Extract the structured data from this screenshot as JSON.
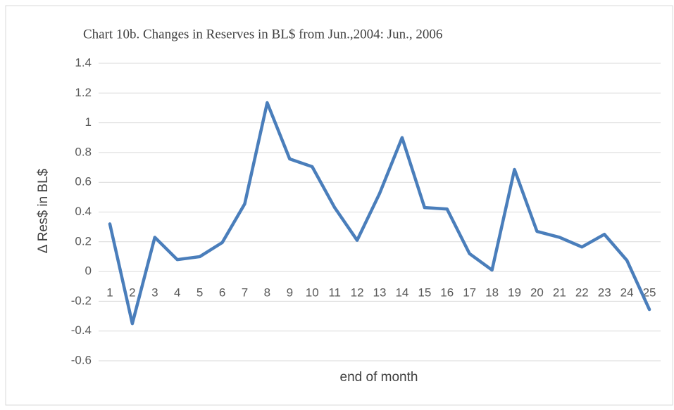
{
  "chart_data": {
    "type": "line",
    "title": "Chart 10b. Changes in Reserves in BL$ from Jun.,2004: Jun., 2006",
    "x_label": "end of month",
    "y_label": "Δ Res$ in BL$",
    "categories": [
      "1",
      "2",
      "3",
      "4",
      "5",
      "6",
      "7",
      "8",
      "9",
      "10",
      "11",
      "12",
      "13",
      "14",
      "15",
      "16",
      "17",
      "18",
      "19",
      "20",
      "21",
      "22",
      "23",
      "24",
      "25"
    ],
    "series": [
      {
        "name": "Δ Res$",
        "color": "#4a7ebb",
        "values": [
          0.32,
          -0.35,
          0.23,
          0.08,
          0.1,
          0.195,
          0.455,
          1.135,
          0.757,
          0.705,
          0.43,
          0.21,
          0.525,
          0.9,
          0.43,
          0.42,
          0.12,
          0.01,
          0.686,
          0.27,
          0.23,
          0.165,
          0.25,
          0.075,
          -0.255
        ]
      }
    ],
    "ylim": [
      -0.6,
      1.4
    ],
    "yticks": [
      -0.6,
      -0.4,
      -0.2,
      0,
      0.2,
      0.4,
      0.6,
      0.8,
      1,
      1.2,
      1.4
    ],
    "grid": true
  }
}
